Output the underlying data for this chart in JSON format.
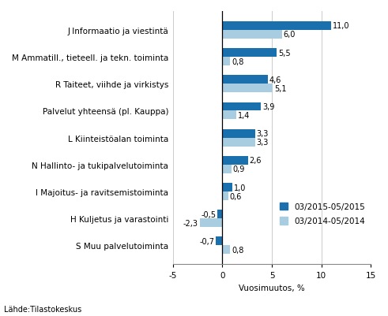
{
  "categories": [
    "S Muu palvelutoiminta",
    "H Kuljetus ja varastointi",
    "I Majoitus- ja ravitsemistoiminta",
    "N Hallinto- ja tukipalvelutoiminta",
    "L Kiinteistöalan toiminta",
    "Palvelut yhteensä (pl. Kauppa)",
    "R Taiteet, viihde ja virkistys",
    "M Ammatill., tieteell. ja tekn. toiminta",
    "J Informaatio ja viestintä"
  ],
  "values_2015": [
    -0.7,
    -0.5,
    1.0,
    2.6,
    3.3,
    3.9,
    4.6,
    5.5,
    11.0
  ],
  "values_2014": [
    0.8,
    -2.3,
    0.6,
    0.9,
    3.3,
    1.4,
    5.1,
    0.8,
    6.0
  ],
  "labels_2015": [
    "-0,7",
    "-0,5",
    "1,0",
    "2,6",
    "3,3",
    "3,9",
    "4,6",
    "5,5",
    "11,0"
  ],
  "labels_2014": [
    "0,8",
    "-2,3",
    "0,6",
    "0,9",
    "3,3",
    "1,4",
    "5,1",
    "0,8",
    "6,0"
  ],
  "color_2015": "#1a6fad",
  "color_2014": "#a8cce0",
  "xlabel": "Vuosimuutos, %",
  "legend_2015": "03/2015-05/2015",
  "legend_2014": "03/2014-05/2014",
  "source": "Lähde:Tilastokeskus",
  "xlim": [
    -5,
    15
  ],
  "xticks": [
    -5,
    0,
    5,
    10,
    15
  ],
  "bar_height": 0.32,
  "label_fontsize": 7,
  "tick_fontsize": 7.5,
  "legend_fontsize": 7.5
}
